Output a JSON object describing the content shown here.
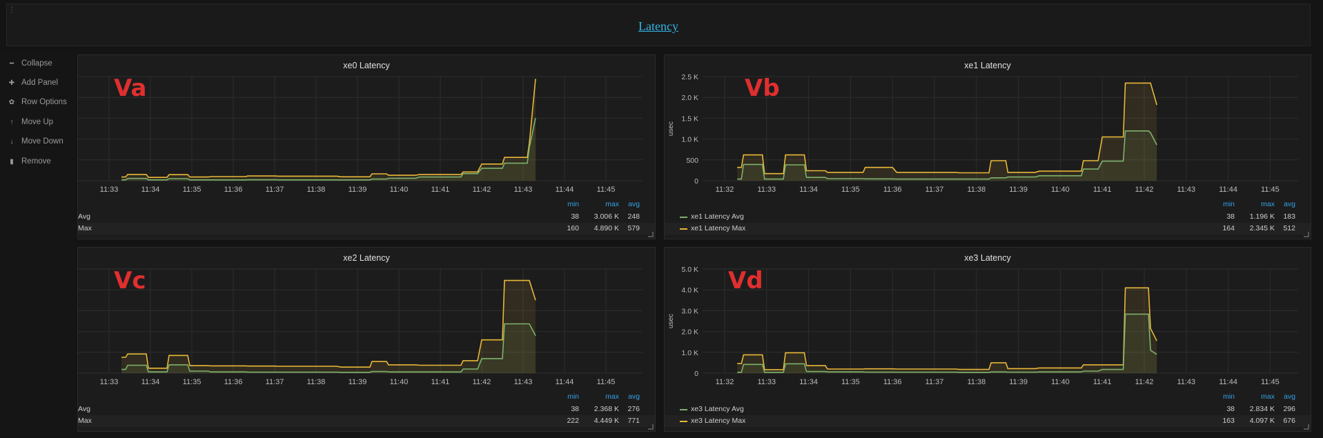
{
  "row_title": "Latency",
  "row_menu": [
    {
      "label": "Collapse",
      "icon": "minus-icon",
      "glyph": "━"
    },
    {
      "label": "Add Panel",
      "icon": "plus-icon",
      "glyph": "✚"
    },
    {
      "label": "Row Options",
      "icon": "gear-icon",
      "glyph": "✿"
    },
    {
      "label": "Move Up",
      "icon": "arrow-up-icon",
      "glyph": "↑"
    },
    {
      "label": "Move Down",
      "icon": "arrow-down-icon",
      "glyph": "↓"
    },
    {
      "label": "Remove",
      "icon": "trash-icon",
      "glyph": "▮"
    }
  ],
  "legend_headers": {
    "min": "min",
    "max": "max",
    "avg": "avg"
  },
  "colors": {
    "avg": "#7eb26d",
    "max": "#eab839",
    "grid": "#2e2e2e",
    "axis": "#bbbbbb"
  },
  "panels": [
    {
      "id": "xe0",
      "title": "xe0 Latency",
      "marker": "Va",
      "legend_swatches": false,
      "chart_data": {
        "type": "line",
        "x_ticks": [
          "11:33",
          "11:34",
          "11:35",
          "11:36",
          "11:37",
          "11:38",
          "11:39",
          "11:40",
          "11:41",
          "11:42",
          "11:43",
          "11:44",
          "11:45"
        ],
        "y_ticks": [],
        "ylabel": "",
        "ylim": [
          0,
          5000
        ],
        "series": [
          {
            "name": "Avg",
            "legend": {
              "min": "38",
              "max": "3.006 K",
              "avg": "248"
            },
            "x": [
              11.3,
              11.4,
              11.45,
              11.9,
              11.95,
              12.4,
              12.45,
              12.9,
              12.95,
              13.4,
              13.45,
              14.3,
              14.35,
              15.0,
              15.1,
              16.5,
              16.6,
              17.3,
              17.35,
              17.7,
              17.75,
              18.4,
              18.5,
              19.5,
              19.55,
              19.9,
              20.0,
              20.5,
              20.55,
              21.1,
              21.15,
              21.3
            ],
            "y": [
              40,
              40,
              110,
              110,
              40,
              40,
              100,
              100,
              40,
              40,
              40,
              40,
              45,
              45,
              40,
              40,
              40,
              40,
              80,
              80,
              120,
              120,
              180,
              180,
              340,
              340,
              600,
              600,
              840,
              840,
              1600,
              3006
            ]
          },
          {
            "name": "Max",
            "legend": {
              "min": "160",
              "max": "4.890 K",
              "avg": "579"
            },
            "x": [
              11.3,
              11.4,
              11.45,
              11.9,
              11.95,
              12.4,
              12.45,
              12.9,
              12.95,
              13.4,
              13.45,
              14.3,
              14.35,
              15.0,
              15.1,
              16.5,
              16.6,
              17.3,
              17.35,
              17.7,
              17.75,
              18.4,
              18.5,
              19.5,
              19.55,
              19.9,
              20.0,
              20.5,
              20.55,
              21.1,
              21.15,
              21.3
            ],
            "y": [
              180,
              180,
              300,
              300,
              160,
              160,
              290,
              290,
              180,
              180,
              200,
              200,
              230,
              230,
              220,
              220,
              190,
              190,
              330,
              330,
              260,
              260,
              300,
              300,
              420,
              420,
              800,
              800,
              1120,
              1120,
              1800,
              4890
            ]
          }
        ]
      }
    },
    {
      "id": "xe1",
      "title": "xe1 Latency",
      "marker": "Vb",
      "legend_swatches": true,
      "chart_data": {
        "type": "line",
        "x_ticks": [
          "11:32",
          "11:33",
          "11:34",
          "11:35",
          "11:36",
          "11:37",
          "11:38",
          "11:39",
          "11:40",
          "11:41",
          "11:42",
          "11:43",
          "11:44",
          "11:45"
        ],
        "y_ticks": [
          "0",
          "500",
          "1.0 K",
          "1.5 K",
          "2.0 K",
          "2.5 K"
        ],
        "ylabel": "usec",
        "ylim": [
          0,
          2500
        ],
        "series": [
          {
            "name": "xe1 Latency Avg",
            "legend": {
              "min": "38",
              "max": "1.196 K",
              "avg": "183"
            },
            "x": [
              11.3,
              11.4,
              11.45,
              11.9,
              11.95,
              12.4,
              12.45,
              12.9,
              12.95,
              13.4,
              13.45,
              14.3,
              14.35,
              15.0,
              15.1,
              16.5,
              16.6,
              17.3,
              17.35,
              17.7,
              17.75,
              18.4,
              18.5,
              19.5,
              19.55,
              19.9,
              20.0,
              20.5,
              20.55,
              21.1,
              21.15,
              21.3
            ],
            "y": [
              40,
              40,
              390,
              390,
              40,
              40,
              380,
              380,
              80,
              80,
              50,
              50,
              45,
              45,
              40,
              40,
              40,
              40,
              70,
              70,
              90,
              90,
              120,
              120,
              280,
              280,
              470,
              470,
              1196,
              1196,
              1150,
              860
            ]
          },
          {
            "name": "xe1 Latency Max",
            "legend": {
              "min": "164",
              "max": "2.345 K",
              "avg": "512"
            },
            "x": [
              11.3,
              11.4,
              11.45,
              11.9,
              11.95,
              12.4,
              12.45,
              12.9,
              12.95,
              13.4,
              13.45,
              14.3,
              14.35,
              15.0,
              15.1,
              16.5,
              16.6,
              17.3,
              17.35,
              17.7,
              17.75,
              18.4,
              18.5,
              19.5,
              19.55,
              19.9,
              20.0,
              20.5,
              20.55,
              21.1,
              21.15,
              21.3
            ],
            "y": [
              320,
              320,
              620,
              620,
              170,
              170,
              620,
              620,
              240,
              240,
              200,
              200,
              320,
              320,
              200,
              200,
              190,
              190,
              480,
              480,
              200,
              200,
              230,
              230,
              480,
              480,
              1050,
              1050,
              2345,
              2345,
              2345,
              1820
            ]
          }
        ]
      }
    },
    {
      "id": "xe2",
      "title": "xe2 Latency",
      "marker": "Vc",
      "legend_swatches": false,
      "chart_data": {
        "type": "line",
        "x_ticks": [
          "11:33",
          "11:34",
          "11:35",
          "11:36",
          "11:37",
          "11:38",
          "11:39",
          "11:40",
          "11:41",
          "11:42",
          "11:43",
          "11:44",
          "11:45"
        ],
        "y_ticks": [],
        "ylabel": "",
        "ylim": [
          0,
          5000
        ],
        "series": [
          {
            "name": "Avg",
            "legend": {
              "min": "38",
              "max": "2.368 K",
              "avg": "276"
            },
            "x": [
              11.3,
              11.4,
              11.45,
              11.9,
              11.95,
              12.4,
              12.45,
              12.9,
              12.95,
              13.4,
              13.45,
              14.3,
              14.35,
              15.0,
              15.1,
              16.5,
              16.6,
              17.3,
              17.35,
              17.7,
              17.75,
              18.4,
              18.5,
              19.5,
              19.55,
              19.9,
              20.0,
              20.5,
              20.55,
              21.1,
              21.15,
              21.3
            ],
            "y": [
              180,
              180,
              380,
              380,
              60,
              60,
              400,
              400,
              100,
              100,
              60,
              60,
              50,
              50,
              50,
              50,
              40,
              40,
              80,
              80,
              60,
              60,
              60,
              60,
              200,
              200,
              700,
              700,
              2368,
              2368,
              2368,
              1800
            ]
          },
          {
            "name": "Max",
            "legend": {
              "min": "222",
              "max": "4.449 K",
              "avg": "771"
            },
            "x": [
              11.3,
              11.4,
              11.45,
              11.9,
              11.95,
              12.4,
              12.45,
              12.9,
              12.95,
              13.4,
              13.45,
              14.3,
              14.35,
              15.0,
              15.1,
              16.5,
              16.6,
              17.3,
              17.35,
              17.7,
              17.75,
              18.4,
              18.5,
              19.5,
              19.55,
              19.9,
              20.0,
              20.5,
              20.55,
              21.1,
              21.15,
              21.3
            ],
            "y": [
              760,
              760,
              920,
              920,
              240,
              240,
              850,
              850,
              360,
              360,
              350,
              350,
              340,
              340,
              330,
              330,
              290,
              290,
              560,
              560,
              400,
              400,
              380,
              380,
              600,
              600,
              1600,
              1600,
              4449,
              4449,
              4449,
              3500
            ]
          }
        ]
      }
    },
    {
      "id": "xe3",
      "title": "xe3 Latency",
      "marker": "Vd",
      "legend_swatches": true,
      "chart_data": {
        "type": "line",
        "x_ticks": [
          "11:32",
          "11:33",
          "11:34",
          "11:35",
          "11:36",
          "11:37",
          "11:38",
          "11:39",
          "11:40",
          "11:41",
          "11:42",
          "11:43",
          "11:44",
          "11:45"
        ],
        "y_ticks": [
          "0",
          "1.0 K",
          "2.0 K",
          "3.0 K",
          "4.0 K",
          "5.0 K"
        ],
        "ylabel": "usec",
        "ylim": [
          0,
          5000
        ],
        "series": [
          {
            "name": "xe3 Latency Avg",
            "legend": {
              "min": "38",
              "max": "2.834 K",
              "avg": "296"
            },
            "x": [
              11.3,
              11.4,
              11.45,
              11.9,
              11.95,
              12.4,
              12.45,
              12.9,
              12.95,
              13.4,
              13.45,
              14.3,
              14.35,
              15.0,
              15.1,
              16.5,
              16.6,
              17.3,
              17.35,
              17.7,
              17.75,
              18.4,
              18.5,
              19.5,
              19.55,
              19.9,
              20.0,
              20.5,
              20.55,
              21.1,
              21.15,
              21.3
            ],
            "y": [
              40,
              40,
              420,
              420,
              40,
              40,
              450,
              450,
              80,
              80,
              60,
              60,
              50,
              50,
              50,
              50,
              40,
              40,
              60,
              60,
              50,
              50,
              60,
              60,
              100,
              100,
              180,
              180,
              2834,
              2834,
              1100,
              900
            ]
          },
          {
            "name": "xe3 Latency Max",
            "legend": {
              "min": "163",
              "max": "4.097 K",
              "avg": "676"
            },
            "x": [
              11.3,
              11.4,
              11.45,
              11.9,
              11.95,
              12.4,
              12.45,
              12.9,
              12.95,
              13.4,
              13.45,
              14.3,
              14.35,
              15.0,
              15.1,
              16.5,
              16.6,
              17.3,
              17.35,
              17.7,
              17.75,
              18.4,
              18.5,
              19.5,
              19.55,
              19.9,
              20.0,
              20.5,
              20.55,
              21.1,
              21.15,
              21.3
            ],
            "y": [
              460,
              460,
              880,
              880,
              170,
              170,
              980,
              980,
              360,
              360,
              200,
              200,
              210,
              210,
              200,
              200,
              180,
              180,
              500,
              500,
              220,
              220,
              250,
              250,
              400,
              400,
              400,
              400,
              4097,
              4097,
              2150,
              1550
            ]
          }
        ]
      }
    }
  ]
}
